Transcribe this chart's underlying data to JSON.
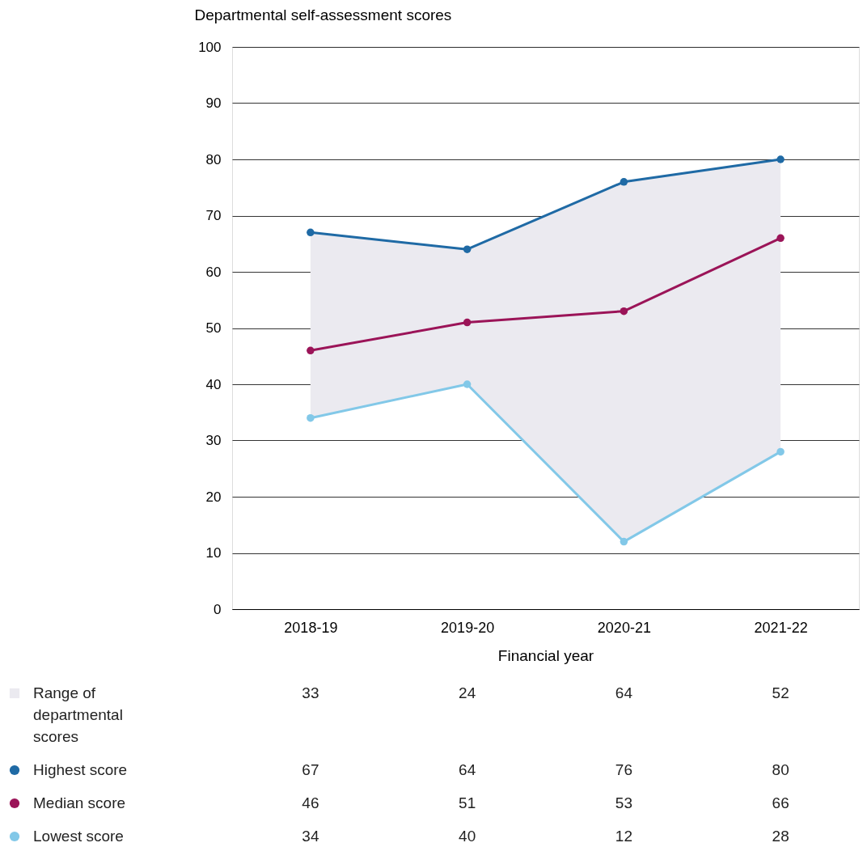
{
  "chart_data": {
    "type": "line",
    "ylabel": "Departmental self-assessment scores",
    "xlabel": "Financial year",
    "categories": [
      "2018-19",
      "2019-20",
      "2020-21",
      "2021-22"
    ],
    "series": [
      {
        "name": "Range of departmental scores",
        "type": "area",
        "color": "#ebeaf0",
        "marker": "none",
        "values": [
          null,
          null,
          null,
          null
        ],
        "lower": [
          34,
          40,
          12,
          28
        ],
        "upper": [
          67,
          64,
          76,
          80
        ],
        "value_labels": [
          "33",
          "24",
          "64",
          "52"
        ]
      },
      {
        "name": "Highest score",
        "color": "#1f6aa5",
        "values": [
          67,
          64,
          76,
          80
        ]
      },
      {
        "name": "Median score",
        "color": "#9b1458",
        "values": [
          46,
          51,
          53,
          66
        ]
      },
      {
        "name": "Lowest score",
        "color": "#82c8e8",
        "values": [
          34,
          40,
          12,
          28
        ]
      }
    ],
    "ylim": [
      0,
      100
    ],
    "yticks": [
      0,
      10,
      20,
      30,
      40,
      50,
      60,
      70,
      80,
      90,
      100
    ],
    "grid": "y",
    "marker": "circle",
    "legend": "bottom left",
    "data_labels": true
  }
}
